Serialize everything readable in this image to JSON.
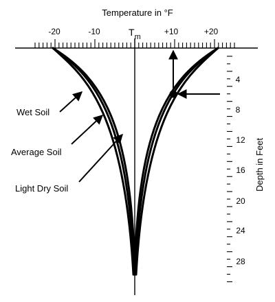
{
  "title": "Temperature in °F",
  "temperature_axis": {
    "ticks": [
      {
        "value": -20,
        "label": "-20"
      },
      {
        "value": -10,
        "label": "-10"
      },
      {
        "value": 10,
        "label": "+10"
      },
      {
        "value": 20,
        "label": "+20"
      }
    ],
    "center_label": "T",
    "center_subscript": "m"
  },
  "depth_axis": {
    "label": "Depth in Feet",
    "ticks": [
      {
        "value": 4,
        "label": "4"
      },
      {
        "value": 8,
        "label": "8"
      },
      {
        "value": 12,
        "label": "12"
      },
      {
        "value": 16,
        "label": "16"
      },
      {
        "value": 20,
        "label": "20"
      },
      {
        "value": 24,
        "label": "24"
      },
      {
        "value": 28,
        "label": "28"
      }
    ]
  },
  "soil_labels": {
    "wet": "Wet Soil",
    "average": "Average Soil",
    "light_dry": "Light Dry Soil"
  }
}
